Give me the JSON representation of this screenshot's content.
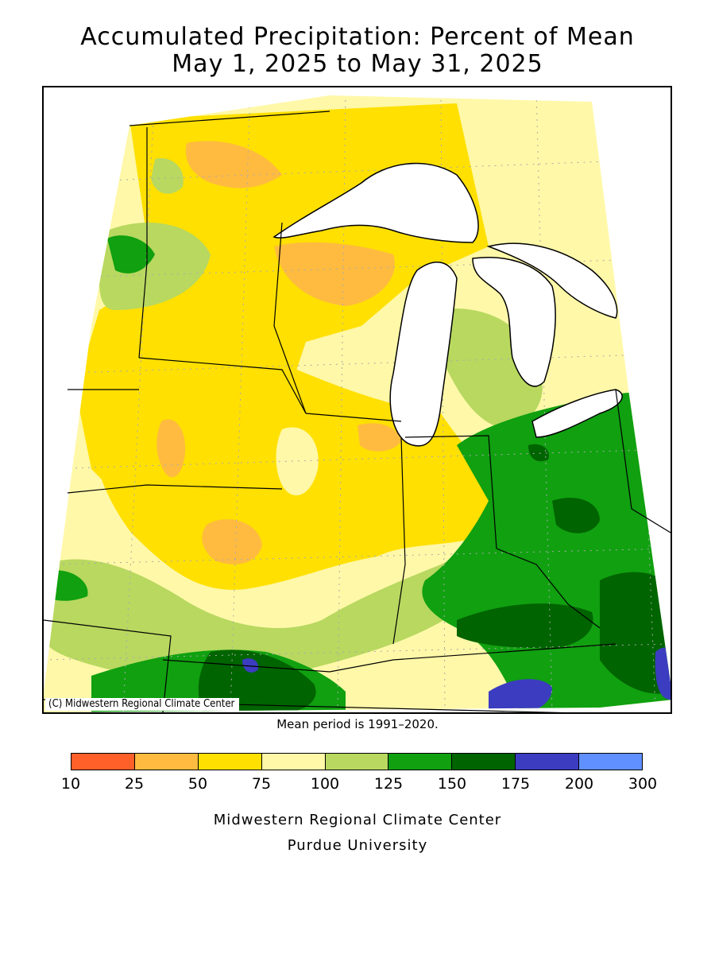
{
  "title_line1": "Accumulated Precipitation: Percent of Mean",
  "title_line2": "May 1, 2025 to May 31, 2025",
  "credit": "(C) Midwestern Regional Climate Center",
  "mean_note": "Mean period is 1991–2020.",
  "legend": {
    "ticks": [
      "10",
      "25",
      "50",
      "75",
      "100",
      "125",
      "150",
      "175",
      "200",
      "300"
    ],
    "colors": [
      "#ff5f28",
      "#ffbb40",
      "#ffe000",
      "#fff8a8",
      "#b8d860",
      "#10a010",
      "#006400",
      "#3c3cc0",
      "#6090ff"
    ]
  },
  "footer_line1": "Midwestern Regional Climate Center",
  "footer_line2": "Purdue University",
  "map_colors": {
    "water": "#ffffff",
    "boundary": "#000000",
    "graticule": "#aaaaaa"
  }
}
